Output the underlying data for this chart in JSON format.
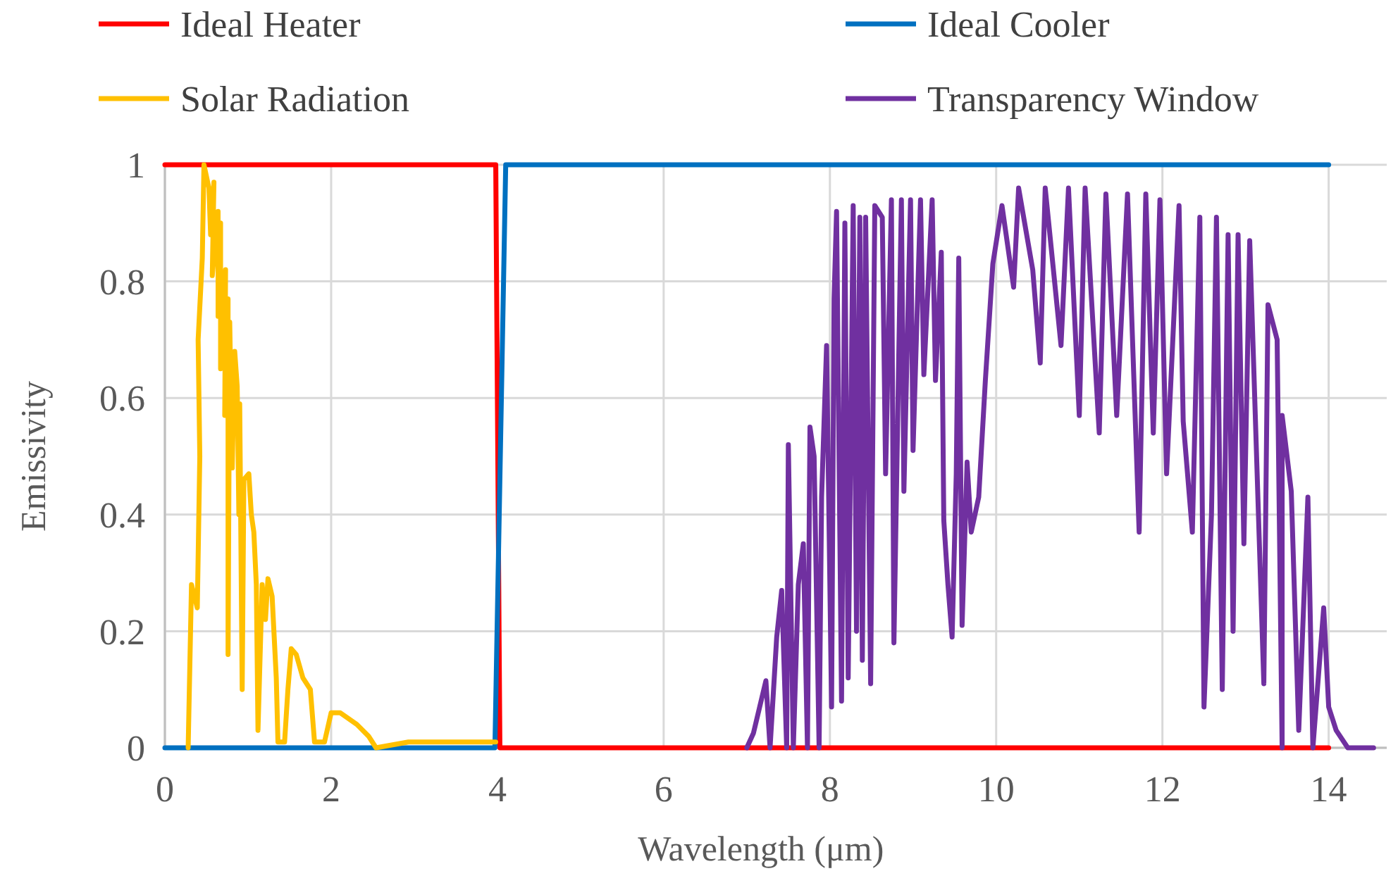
{
  "chart_data": {
    "type": "line",
    "xlabel": "Wavelength (μm)",
    "ylabel": "Emissivity",
    "xlim": [
      0,
      14.8
    ],
    "xticks": [
      0,
      2,
      4,
      6,
      8,
      10,
      12,
      14
    ],
    "ylim": [
      0,
      1
    ],
    "yticks": [
      0,
      0.2,
      0.4,
      0.6,
      0.8,
      1
    ],
    "grid": true,
    "legend": "top",
    "marker": "none",
    "line_style": "solid",
    "series": [
      {
        "name": "Ideal Heater",
        "color": "#ff0000",
        "x": [
          0,
          3.98,
          4.03,
          14
        ],
        "values": [
          1,
          1,
          0,
          0
        ]
      },
      {
        "name": "Ideal Cooler",
        "color": "#0070c0",
        "x": [
          0,
          3.97,
          4.1,
          14
        ],
        "values": [
          0,
          0,
          1,
          1
        ]
      },
      {
        "name": "Solar Radiation",
        "color": "#ffc000",
        "x": [
          0.28,
          0.32,
          0.39,
          0.42,
          0.4,
          0.45,
          0.47,
          0.53,
          0.55,
          0.59,
          0.57,
          0.64,
          0.64,
          0.67,
          0.67,
          0.73,
          0.72,
          0.76,
          0.76,
          0.78,
          0.81,
          0.84,
          0.87,
          0.89,
          0.9,
          0.93,
          0.95,
          1.01,
          1.04,
          1.07,
          1.1,
          1.12,
          1.17,
          1.21,
          1.24,
          1.29,
          1.34,
          1.36,
          1.44,
          1.48,
          1.52,
          1.58,
          1.66,
          1.75,
          1.8,
          1.92,
          2.0,
          2.11,
          2.31,
          2.45,
          2.54,
          2.93,
          3.15,
          3.44,
          3.98
        ],
        "values": [
          0,
          0.28,
          0.24,
          0.5,
          0.7,
          0.84,
          1.0,
          0.96,
          0.88,
          0.97,
          0.81,
          0.92,
          0.74,
          0.9,
          0.65,
          0.82,
          0.57,
          0.77,
          0.16,
          0.73,
          0.48,
          0.68,
          0.62,
          0.4,
          0.59,
          0.1,
          0.46,
          0.47,
          0.4,
          0.37,
          0.28,
          0.03,
          0.28,
          0.22,
          0.29,
          0.26,
          0.12,
          0.01,
          0.01,
          0.1,
          0.17,
          0.16,
          0.12,
          0.1,
          0.01,
          0.01,
          0.06,
          0.06,
          0.04,
          0.02,
          0,
          0.01,
          0.01,
          0.01,
          0.01
        ]
      },
      {
        "name": "Transparency Window",
        "color": "#7030a0",
        "x": [
          7.0,
          7.08,
          7.23,
          7.28,
          7.36,
          7.42,
          7.48,
          7.5,
          7.56,
          7.62,
          7.68,
          7.73,
          7.76,
          7.81,
          7.87,
          7.9,
          7.96,
          8.02,
          8.05,
          8.08,
          8.14,
          8.18,
          8.22,
          8.28,
          8.32,
          8.36,
          8.39,
          8.43,
          8.49,
          8.54,
          8.63,
          8.67,
          8.74,
          8.77,
          8.86,
          8.89,
          8.97,
          9.0,
          9.09,
          9.13,
          9.23,
          9.27,
          9.34,
          9.37,
          9.42,
          9.47,
          9.52,
          9.55,
          9.59,
          9.65,
          9.7,
          9.79,
          9.87,
          9.96,
          10.07,
          10.21,
          10.27,
          10.44,
          10.53,
          10.59,
          10.78,
          10.87,
          11.0,
          11.07,
          11.24,
          11.32,
          11.45,
          11.58,
          11.72,
          11.8,
          11.89,
          11.97,
          12.05,
          12.2,
          12.25,
          12.36,
          12.45,
          12.5,
          12.59,
          12.65,
          12.72,
          12.79,
          12.85,
          12.91,
          12.98,
          13.05,
          13.22,
          13.27,
          13.38,
          13.44,
          13.44,
          13.55,
          13.64,
          13.75,
          13.81,
          13.94,
          14.0,
          14.09,
          14.23,
          14.54
        ],
        "values": [
          0,
          0.025,
          0.115,
          0,
          0.19,
          0.27,
          0,
          0.52,
          0,
          0.28,
          0.35,
          0,
          0.55,
          0.5,
          0,
          0.43,
          0.69,
          0.07,
          0.77,
          0.92,
          0.08,
          0.9,
          0.12,
          0.93,
          0.2,
          0.91,
          0.15,
          0.91,
          0.11,
          0.93,
          0.91,
          0.47,
          0.94,
          0.18,
          0.94,
          0.44,
          0.94,
          0.51,
          0.94,
          0.64,
          0.94,
          0.63,
          0.85,
          0.39,
          0.28,
          0.19,
          0.47,
          0.84,
          0.21,
          0.49,
          0.37,
          0.43,
          0.63,
          0.83,
          0.93,
          0.79,
          0.96,
          0.82,
          0.66,
          0.96,
          0.69,
          0.96,
          0.57,
          0.96,
          0.54,
          0.95,
          0.57,
          0.95,
          0.37,
          0.95,
          0.54,
          0.94,
          0.47,
          0.93,
          0.56,
          0.37,
          0.91,
          0.07,
          0.4,
          0.91,
          0.1,
          0.88,
          0.2,
          0.88,
          0.35,
          0.87,
          0.11,
          0.76,
          0.7,
          0,
          0.57,
          0.44,
          0.03,
          0.43,
          0,
          0.24,
          0.07,
          0.03,
          0,
          0
        ]
      }
    ]
  }
}
